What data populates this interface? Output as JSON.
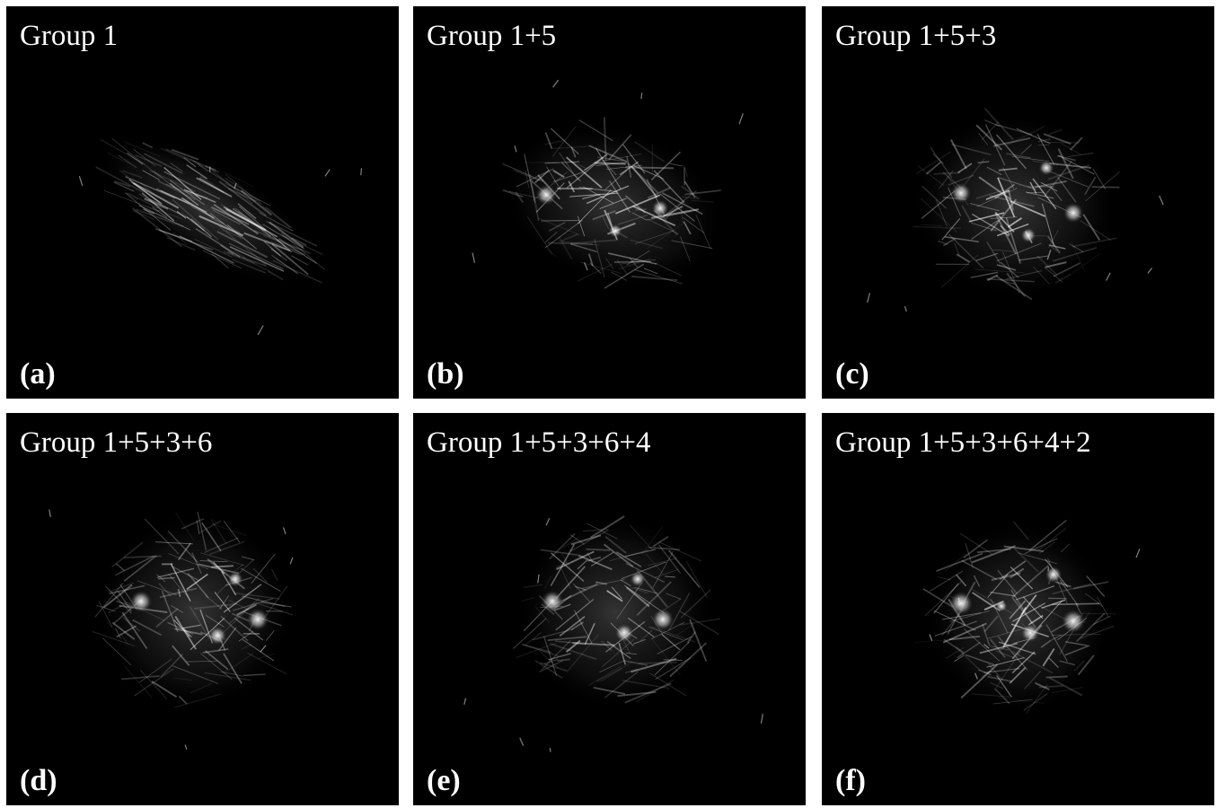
{
  "panels": [
    {
      "title": "Group 1",
      "label": "(a)"
    },
    {
      "title": "Group 1+5",
      "label": "(b)"
    },
    {
      "title": "Group 1+5+3",
      "label": "(c)"
    },
    {
      "title": "Group 1+5+3+6",
      "label": "(d)"
    },
    {
      "title": "Group 1+5+3+6+4",
      "label": "(e)"
    },
    {
      "title": "Group 1+5+3+6+4+2",
      "label": "(f)"
    }
  ]
}
